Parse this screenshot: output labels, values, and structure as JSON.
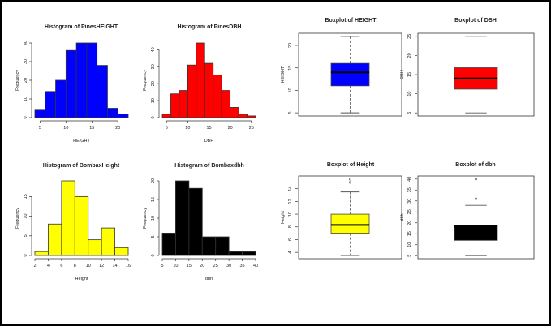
{
  "chart_data": [
    {
      "type": "histogram",
      "title": "Histogram of PinesHEIGHT",
      "xlabel": "HEIGHT",
      "ylabel": "Frequency",
      "color": "#0000ff",
      "bins": [
        4,
        6,
        8,
        10,
        12,
        14,
        16,
        18,
        20,
        22
      ],
      "values": [
        4,
        14,
        20,
        36,
        40,
        40,
        28,
        5,
        2
      ],
      "xticks": [
        5,
        10,
        15,
        20
      ],
      "yticks": [
        0,
        10,
        20,
        30,
        40
      ],
      "xlim": [
        4,
        22
      ],
      "ylim": [
        0,
        40
      ]
    },
    {
      "type": "histogram",
      "title": "Histogram of PinesDBH",
      "xlabel": "DBH",
      "ylabel": "Frequency",
      "color": "#ff0000",
      "bins": [
        4,
        6,
        8,
        10,
        12,
        14,
        16,
        18,
        20,
        22,
        24,
        26
      ],
      "values": [
        2,
        14,
        16,
        31,
        44,
        32,
        25,
        16,
        6,
        2,
        1
      ],
      "xticks": [
        5,
        10,
        15,
        20,
        25
      ],
      "yticks": [
        0,
        10,
        20,
        30,
        40
      ],
      "xlim": [
        4,
        26
      ],
      "ylim": [
        0,
        44
      ]
    },
    {
      "type": "boxplot",
      "title": "Boxplot of HEIGHT",
      "ylabel": "HEIGHT",
      "color": "#0000ff",
      "min": 5,
      "q1": 11,
      "median": 14,
      "q3": 16,
      "max": 22,
      "outliers": [],
      "yticks": [
        5,
        10,
        15,
        20
      ],
      "ylim": [
        4.3,
        22.7
      ]
    },
    {
      "type": "boxplot",
      "title": "Boxplot of DBH",
      "ylabel": "DBH",
      "color": "#ff0000",
      "min": 5,
      "q1": 11.2,
      "median": 14,
      "q3": 16.8,
      "max": 25,
      "outliers": [],
      "yticks": [
        5,
        10,
        15,
        20,
        25
      ],
      "ylim": [
        4.2,
        25.8
      ]
    },
    {
      "type": "histogram",
      "title": "Histogram of BombaxHeight",
      "xlabel": "Height",
      "ylabel": "Frequency",
      "color": "#ffff00",
      "bins": [
        2,
        4,
        6,
        8,
        10,
        12,
        14,
        16
      ],
      "values": [
        1,
        8,
        19,
        15,
        4,
        7,
        2
      ],
      "xticks": [
        2,
        4,
        6,
        8,
        10,
        12,
        14,
        16
      ],
      "yticks": [
        0,
        5,
        10,
        15
      ],
      "xlim": [
        2,
        16
      ],
      "ylim": [
        0,
        19
      ]
    },
    {
      "type": "histogram",
      "title": "Histogram of Bombaxdbh",
      "xlabel": "dbh",
      "ylabel": "Frequency",
      "color": "#000000",
      "bins": [
        5,
        10,
        15,
        20,
        25,
        30,
        35,
        40
      ],
      "values": [
        6,
        20,
        18,
        5,
        5,
        1,
        1
      ],
      "xticks": [
        5,
        10,
        15,
        20,
        25,
        30,
        35,
        40
      ],
      "yticks": [
        0,
        5,
        10,
        15,
        20
      ],
      "xlim": [
        5,
        40
      ],
      "ylim": [
        0,
        20
      ]
    },
    {
      "type": "boxplot",
      "title": "Boxplot of Height",
      "ylabel": "Height",
      "color": "#ffff00",
      "min": 3.5,
      "q1": 7,
      "median": 8.3,
      "q3": 10,
      "max": 13.5,
      "outliers": [
        15,
        15.5
      ],
      "yticks": [
        4,
        6,
        8,
        10,
        12,
        14
      ],
      "ylim": [
        3,
        16
      ]
    },
    {
      "type": "boxplot",
      "title": "Boxplot of dbh",
      "ylabel": "dbh",
      "color": "#000000",
      "min": 5,
      "q1": 12,
      "median": 18.5,
      "q3": 19,
      "max": 28,
      "outliers": [
        31,
        40
      ],
      "yticks": [
        5,
        10,
        15,
        20,
        25,
        30,
        35,
        40
      ],
      "ylim": [
        3.6,
        41.4
      ]
    }
  ]
}
